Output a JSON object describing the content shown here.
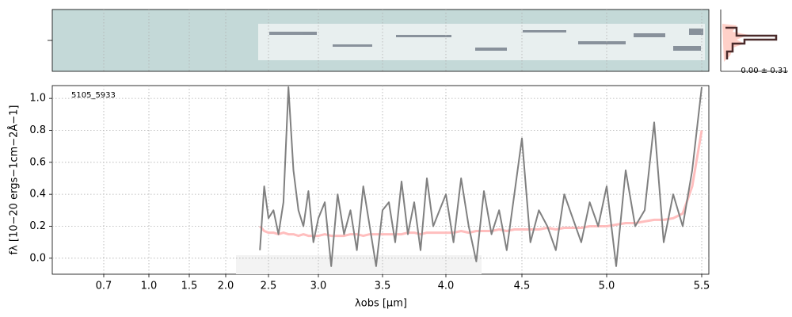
{
  "chart_data": {
    "type": "line",
    "annotation": "5105_5933",
    "xlabel": "λobs [μm]",
    "ylabel": "fλ [10−20 ergs−1cm−2Å−1]",
    "side_label": "0.00 ± 0.31",
    "xlim": [
      0.6,
      5.52
    ],
    "xticks": [
      0.7,
      {
        "value": 1.0,
        "label": "1.0"
      },
      1.5,
      {
        "value": 2.0,
        "label": "2.0"
      },
      2.5,
      {
        "value": 3.0,
        "label": "3.0"
      },
      3.5,
      {
        "value": 4.0,
        "label": "4.0"
      },
      4.5,
      {
        "value": 5.0,
        "label": "5.0"
      },
      5.5
    ],
    "ylim": [
      -0.1,
      1.08
    ],
    "yticks": [
      {
        "value": 0,
        "label": "0.0"
      },
      0.2,
      0.4,
      0.6,
      0.8,
      {
        "value": 1,
        "label": "1.0"
      }
    ],
    "grid": true,
    "x": [
      2.4,
      2.45,
      2.5,
      2.55,
      2.6,
      2.65,
      2.7,
      2.75,
      2.8,
      2.85,
      2.9,
      2.95,
      3.0,
      3.05,
      3.1,
      3.15,
      3.2,
      3.25,
      3.3,
      3.35,
      3.4,
      3.45,
      3.5,
      3.55,
      3.6,
      3.65,
      3.7,
      3.75,
      3.8,
      3.85,
      3.9,
      3.95,
      4.0,
      4.05,
      4.1,
      4.15,
      4.2,
      4.25,
      4.3,
      4.35,
      4.4,
      4.45,
      4.5,
      4.55,
      4.6,
      4.65,
      4.7,
      4.75,
      4.8,
      4.85,
      4.9,
      4.95,
      5.0,
      5.05,
      5.1,
      5.15,
      5.2,
      5.25,
      5.3,
      5.35,
      5.4,
      5.45,
      5.5
    ],
    "series": [
      {
        "color": "#808080",
        "values": [
          0.05,
          0.45,
          0.25,
          0.3,
          0.15,
          0.35,
          1.07,
          0.55,
          0.3,
          0.2,
          0.42,
          0.1,
          0.25,
          0.35,
          -0.05,
          0.4,
          0.15,
          0.3,
          0.05,
          0.45,
          0.2,
          -0.05,
          0.3,
          0.35,
          0.1,
          0.48,
          0.15,
          0.35,
          0.05,
          0.5,
          0.2,
          0.3,
          0.4,
          0.1,
          0.5,
          0.2,
          -0.02,
          0.42,
          0.15,
          0.3,
          0.05,
          0.4,
          0.75,
          0.1,
          0.3,
          0.2,
          0.05,
          0.4,
          0.25,
          0.1,
          0.35,
          0.2,
          0.45,
          -0.05,
          0.55,
          0.2,
          0.3,
          0.85,
          0.1,
          0.4,
          0.2,
          0.55,
          1.07
        ]
      },
      {
        "color": "#ffb3b3",
        "values": [
          0.2,
          0.17,
          0.16,
          0.16,
          0.15,
          0.16,
          0.15,
          0.15,
          0.14,
          0.15,
          0.14,
          0.14,
          0.14,
          0.15,
          0.14,
          0.14,
          0.14,
          0.15,
          0.15,
          0.14,
          0.15,
          0.15,
          0.15,
          0.15,
          0.15,
          0.15,
          0.16,
          0.16,
          0.15,
          0.16,
          0.16,
          0.16,
          0.16,
          0.16,
          0.17,
          0.16,
          0.17,
          0.17,
          0.17,
          0.18,
          0.17,
          0.18,
          0.18,
          0.18,
          0.18,
          0.19,
          0.18,
          0.19,
          0.19,
          0.19,
          0.2,
          0.2,
          0.2,
          0.21,
          0.22,
          0.22,
          0.23,
          0.24,
          0.24,
          0.25,
          0.28,
          0.45,
          0.8
        ]
      }
    ]
  }
}
